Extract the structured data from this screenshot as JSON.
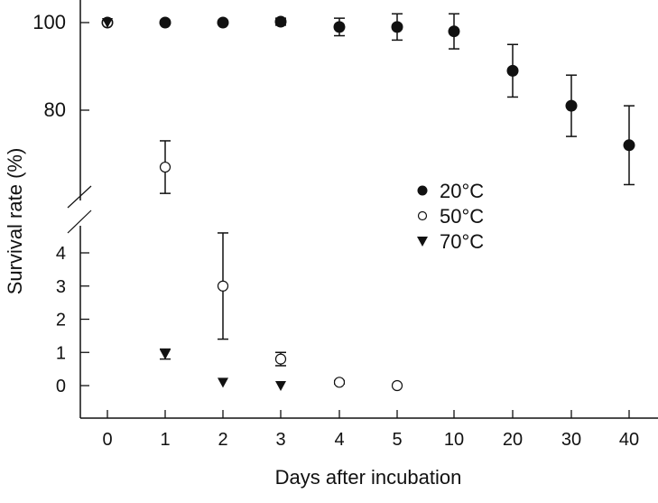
{
  "chart_data": {
    "type": "scatter",
    "xlabel": "Days after incubation",
    "ylabel": "Survival rate (%)",
    "x_categories": [
      "0",
      "1",
      "2",
      "3",
      "4",
      "5",
      "10",
      "20",
      "30",
      "40"
    ],
    "y_axis_broken": true,
    "y_upper_ticks": [
      100,
      80
    ],
    "y_lower_ticks": [
      4,
      3,
      2,
      1,
      0
    ],
    "legend_position": "center",
    "series": [
      {
        "name": "20°C",
        "marker": "filled-circle",
        "color": "#111111",
        "points": [
          {
            "x": "0",
            "y": 100,
            "err": 0
          },
          {
            "x": "1",
            "y": 100,
            "err": 0
          },
          {
            "x": "2",
            "y": 100,
            "err": 0
          },
          {
            "x": "3",
            "y": 100.2,
            "err": 0.8
          },
          {
            "x": "4",
            "y": 99,
            "err": 2
          },
          {
            "x": "5",
            "y": 99,
            "err": 3
          },
          {
            "x": "10",
            "y": 98,
            "err": 4
          },
          {
            "x": "20",
            "y": 89,
            "err": 6
          },
          {
            "x": "30",
            "y": 81,
            "err": 7
          },
          {
            "x": "40",
            "y": 72,
            "err": 9
          }
        ]
      },
      {
        "name": "50°C",
        "marker": "open-circle",
        "color": "#111111",
        "points": [
          {
            "x": "0",
            "y": 100,
            "err": 0
          },
          {
            "x": "1",
            "y": 67,
            "err": 6
          },
          {
            "x": "2",
            "y": 3,
            "err": 1.6
          },
          {
            "x": "3",
            "y": 0.8,
            "err": 0.2
          },
          {
            "x": "4",
            "y": 0.1,
            "err": 0.05
          },
          {
            "x": "5",
            "y": 0,
            "err": 0
          }
        ]
      },
      {
        "name": "70°C",
        "marker": "filled-triangle-down",
        "color": "#111111",
        "points": [
          {
            "x": "0",
            "y": 100,
            "err": 0
          },
          {
            "x": "1",
            "y": 0.95,
            "err": 0.15
          },
          {
            "x": "2",
            "y": 0.1,
            "err": 0
          },
          {
            "x": "3",
            "y": 0,
            "err": 0
          }
        ]
      }
    ]
  }
}
